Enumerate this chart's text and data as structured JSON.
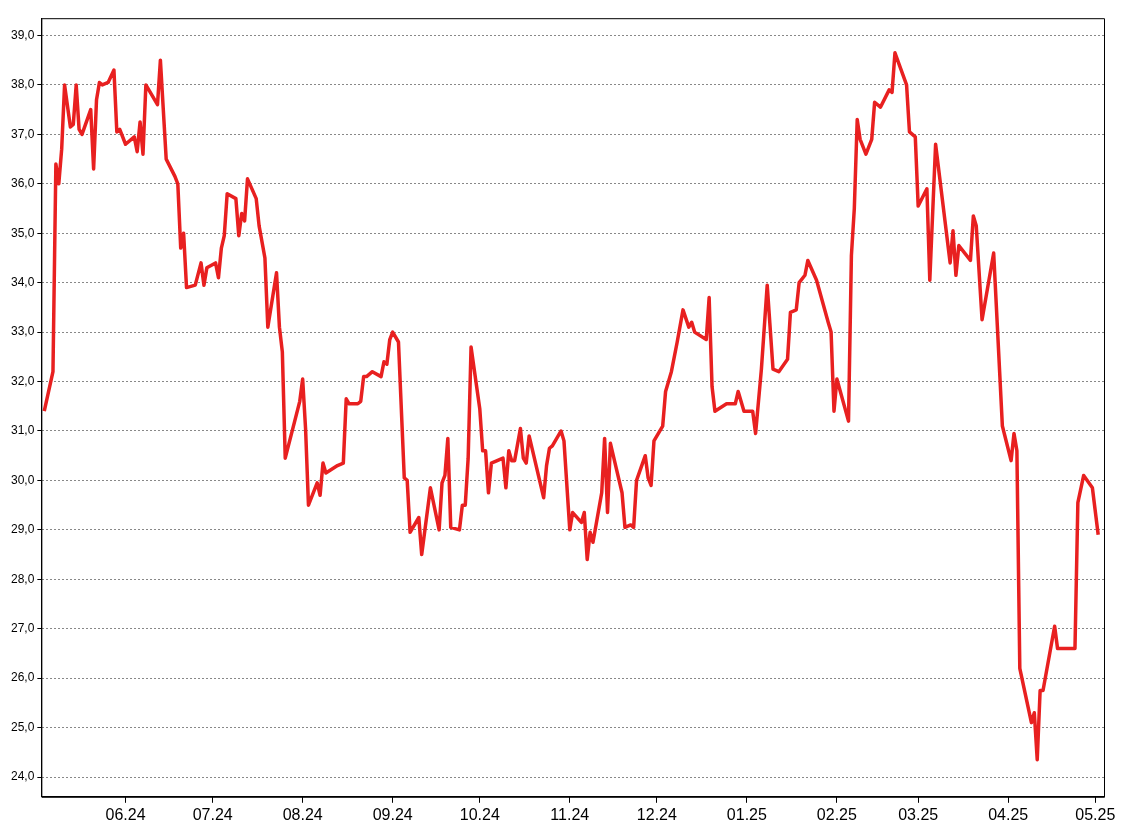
{
  "chart_data": {
    "type": "line",
    "xlim": [
      "2024-05-03",
      "2025-05-04"
    ],
    "ylim": [
      23.6,
      39.35
    ],
    "xticks": [
      {
        "value": "2024-06-01",
        "label": "06.24"
      },
      {
        "value": "2024-07-01",
        "label": "07.24"
      },
      {
        "value": "2024-08-01",
        "label": "08.24"
      },
      {
        "value": "2024-09-01",
        "label": "09.24"
      },
      {
        "value": "2024-10-01",
        "label": "10.24"
      },
      {
        "value": "2024-11-01",
        "label": "11.24"
      },
      {
        "value": "2024-12-01",
        "label": "12.24"
      },
      {
        "value": "2025-01-01",
        "label": "01.25"
      },
      {
        "value": "2025-02-01",
        "label": "02.25"
      },
      {
        "value": "2025-03-01",
        "label": "03.25"
      },
      {
        "value": "2025-04-01",
        "label": "04.25"
      },
      {
        "value": "2025-05-01",
        "label": "05.25"
      }
    ],
    "yticks": [
      {
        "value": 24,
        "label": "24,0"
      },
      {
        "value": 25,
        "label": "25,0"
      },
      {
        "value": 26,
        "label": "26,0"
      },
      {
        "value": 27,
        "label": "27,0"
      },
      {
        "value": 28,
        "label": "28,0"
      },
      {
        "value": 29,
        "label": "29,0"
      },
      {
        "value": 30,
        "label": "30,0"
      },
      {
        "value": 31,
        "label": "31,0"
      },
      {
        "value": 32,
        "label": "32,0"
      },
      {
        "value": 33,
        "label": "33,0"
      },
      {
        "value": 34,
        "label": "34,0"
      },
      {
        "value": 35,
        "label": "35,0"
      },
      {
        "value": 36,
        "label": "36,0"
      },
      {
        "value": 37,
        "label": "37,0"
      },
      {
        "value": 38,
        "label": "38,0"
      },
      {
        "value": 39,
        "label": "39,0"
      }
    ],
    "grid": "y",
    "legend": false,
    "marker": "none",
    "line_style": "solid",
    "x": [
      "2024-05-04",
      "2024-05-07",
      "2024-05-08",
      "2024-05-09",
      "2024-05-10",
      "2024-05-11",
      "2024-05-13",
      "2024-05-14",
      "2024-05-15",
      "2024-05-16",
      "2024-05-17",
      "2024-05-20",
      "2024-05-21",
      "2024-05-22",
      "2024-05-23",
      "2024-05-24",
      "2024-05-26",
      "2024-05-28",
      "2024-05-29",
      "2024-05-30",
      "2024-06-01",
      "2024-06-04",
      "2024-06-05",
      "2024-06-06",
      "2024-06-07",
      "2024-06-08",
      "2024-06-12",
      "2024-06-13",
      "2024-06-15",
      "2024-06-18",
      "2024-06-19",
      "2024-06-20",
      "2024-06-21",
      "2024-06-22",
      "2024-06-25",
      "2024-06-27",
      "2024-06-28",
      "2024-06-29",
      "2024-07-02",
      "2024-07-03",
      "2024-07-04",
      "2024-07-05",
      "2024-07-06",
      "2024-07-09",
      "2024-07-10",
      "2024-07-11",
      "2024-07-12",
      "2024-07-13",
      "2024-07-16",
      "2024-07-17",
      "2024-07-19",
      "2024-07-20",
      "2024-07-23",
      "2024-07-24",
      "2024-07-25",
      "2024-07-26",
      "2024-07-31",
      "2024-08-01",
      "2024-08-02",
      "2024-08-03",
      "2024-08-06",
      "2024-08-07",
      "2024-08-08",
      "2024-08-09",
      "2024-08-13",
      "2024-08-15",
      "2024-08-16",
      "2024-08-17",
      "2024-08-20",
      "2024-08-21",
      "2024-08-22",
      "2024-08-23",
      "2024-08-25",
      "2024-08-28",
      "2024-08-29",
      "2024-08-30",
      "2024-08-31",
      "2024-09-01",
      "2024-09-03",
      "2024-09-05",
      "2024-09-06",
      "2024-09-07",
      "2024-09-10",
      "2024-09-11",
      "2024-09-14",
      "2024-09-17",
      "2024-09-18",
      "2024-09-19",
      "2024-09-20",
      "2024-09-21",
      "2024-09-24",
      "2024-09-25",
      "2024-09-26",
      "2024-09-27",
      "2024-09-28",
      "2024-10-01",
      "2024-10-02",
      "2024-10-03",
      "2024-10-04",
      "2024-10-05",
      "2024-10-09",
      "2024-10-10",
      "2024-10-11",
      "2024-10-12",
      "2024-10-13",
      "2024-10-15",
      "2024-10-16",
      "2024-10-17",
      "2024-10-18",
      "2024-10-23",
      "2024-10-24",
      "2024-10-25",
      "2024-10-26",
      "2024-10-29",
      "2024-10-30",
      "2024-11-01",
      "2024-11-02",
      "2024-11-05",
      "2024-11-06",
      "2024-11-07",
      "2024-11-08",
      "2024-11-09",
      "2024-11-12",
      "2024-11-13",
      "2024-11-14",
      "2024-11-15",
      "2024-11-17",
      "2024-11-19",
      "2024-11-20",
      "2024-11-22",
      "2024-11-23",
      "2024-11-24",
      "2024-11-27",
      "2024-11-28",
      "2024-11-29",
      "2024-11-30",
      "2024-12-03",
      "2024-12-04",
      "2024-12-06",
      "2024-12-08",
      "2024-12-10",
      "2024-12-12",
      "2024-12-13",
      "2024-12-14",
      "2024-12-18",
      "2024-12-19",
      "2024-12-20",
      "2024-12-21",
      "2024-12-25",
      "2024-12-28",
      "2024-12-29",
      "2024-12-31",
      "2025-01-03",
      "2025-01-04",
      "2025-01-06",
      "2025-01-08",
      "2025-01-10",
      "2025-01-12",
      "2025-01-15",
      "2025-01-16",
      "2025-01-18",
      "2025-01-19",
      "2025-01-21",
      "2025-01-22",
      "2025-01-25",
      "2025-01-29",
      "2025-01-30",
      "2025-01-31",
      "2025-02-01",
      "2025-02-05",
      "2025-02-06",
      "2025-02-07",
      "2025-02-08",
      "2025-02-09",
      "2025-02-11",
      "2025-02-13",
      "2025-02-14",
      "2025-02-16",
      "2025-02-19",
      "2025-02-20",
      "2025-02-21",
      "2025-02-25",
      "2025-02-26",
      "2025-02-28",
      "2025-03-01",
      "2025-03-04",
      "2025-03-05",
      "2025-03-07",
      "2025-03-12",
      "2025-03-13",
      "2025-03-14",
      "2025-03-15",
      "2025-03-19",
      "2025-03-20",
      "2025-03-21",
      "2025-03-23",
      "2025-03-27",
      "2025-03-30",
      "2025-04-02",
      "2025-04-03",
      "2025-04-04",
      "2025-04-05",
      "2025-04-09",
      "2025-04-10",
      "2025-04-11",
      "2025-04-12",
      "2025-04-13",
      "2025-04-17",
      "2025-04-18",
      "2025-04-24",
      "2025-04-25",
      "2025-04-27",
      "2025-04-30",
      "2025-05-02"
    ],
    "series": [
      {
        "color": "#e82020",
        "values": [
          31.4,
          32.2,
          36.4,
          36.0,
          36.7,
          38.0,
          37.15,
          37.2,
          38.0,
          37.1,
          37.0,
          37.5,
          36.3,
          37.7,
          38.05,
          38.0,
          38.05,
          38.3,
          37.05,
          37.1,
          36.8,
          36.95,
          36.65,
          37.25,
          36.6,
          38.0,
          37.6,
          38.5,
          36.5,
          36.15,
          36.0,
          34.7,
          35.0,
          33.9,
          33.95,
          34.4,
          33.95,
          34.3,
          34.4,
          34.1,
          34.7,
          34.95,
          35.8,
          35.7,
          34.95,
          35.4,
          35.25,
          36.1,
          35.7,
          35.15,
          34.5,
          33.1,
          34.2,
          33.1,
          32.6,
          30.45,
          31.6,
          32.05,
          31.05,
          29.5,
          29.95,
          29.7,
          30.35,
          30.15,
          30.3,
          30.35,
          31.65,
          31.55,
          31.55,
          31.6,
          32.1,
          32.1,
          32.2,
          32.1,
          32.4,
          32.35,
          32.85,
          33.0,
          32.8,
          30.05,
          30.0,
          28.95,
          29.25,
          28.5,
          29.85,
          29.0,
          29.95,
          30.1,
          30.85,
          29.05,
          29.0,
          29.5,
          29.5,
          30.45,
          32.7,
          31.45,
          30.6,
          30.6,
          29.75,
          30.35,
          30.45,
          29.85,
          30.6,
          30.4,
          30.4,
          31.05,
          30.45,
          30.35,
          30.9,
          29.65,
          30.3,
          30.65,
          30.7,
          31.0,
          30.8,
          29.0,
          29.35,
          29.15,
          29.35,
          28.4,
          28.95,
          28.75,
          29.75,
          30.85,
          29.35,
          30.75,
          30.25,
          29.75,
          29.05,
          29.1,
          29.05,
          30.0,
          30.5,
          30.05,
          29.9,
          30.8,
          31.1,
          31.8,
          32.2,
          32.8,
          33.45,
          33.1,
          33.2,
          33.0,
          32.85,
          33.7,
          31.9,
          31.4,
          31.55,
          31.55,
          31.8,
          31.4,
          31.4,
          30.95,
          32.25,
          33.95,
          32.25,
          32.2,
          32.45,
          33.4,
          33.45,
          34.0,
          34.15,
          34.45,
          34.05,
          33.2,
          33.0,
          31.4,
          32.05,
          31.2,
          34.55,
          35.5,
          37.3,
          36.9,
          36.6,
          36.9,
          37.65,
          37.55,
          37.9,
          37.85,
          38.65,
          38.0,
          37.05,
          36.95,
          35.55,
          35.9,
          34.05,
          36.8,
          34.4,
          35.05,
          34.15,
          34.75,
          34.45,
          35.35,
          35.15,
          33.25,
          34.6,
          31.1,
          30.4,
          30.95,
          30.6,
          26.2,
          25.1,
          25.3,
          24.35,
          25.75,
          25.75,
          27.05,
          26.6,
          26.6,
          29.55,
          30.1,
          29.85,
          28.9
        ]
      }
    ]
  }
}
